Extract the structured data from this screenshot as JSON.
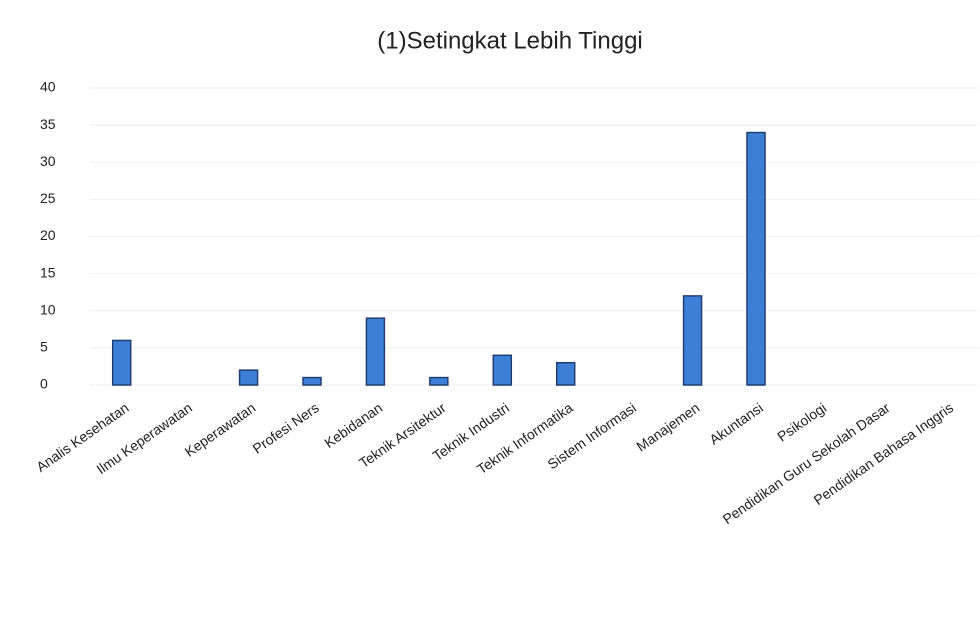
{
  "chart_data": {
    "type": "bar",
    "title": "(1)Setingkat Lebih Tinggi",
    "categories": [
      "Analis Kesehatan",
      "Ilmu Keperawatan",
      "Keperawatan",
      "Profesi Ners",
      "Kebidanan",
      "Teknik Arsitektur",
      "Teknik Industri",
      "Teknik Informatika",
      "Sistem Informasi",
      "Manajemen",
      "Akuntansi",
      "Psikologi",
      "Pendidikan Guru Sekolah Dasar",
      "Pendidikan Bahasa Inggris"
    ],
    "values": [
      6,
      0,
      2,
      1,
      9,
      1,
      4,
      3,
      0,
      12,
      34,
      0,
      0,
      0
    ],
    "color": "#3d7fd6",
    "ylim": [
      0,
      40
    ],
    "yticks": [
      0,
      5,
      10,
      15,
      20,
      25,
      30,
      35,
      40
    ],
    "grid": true
  }
}
